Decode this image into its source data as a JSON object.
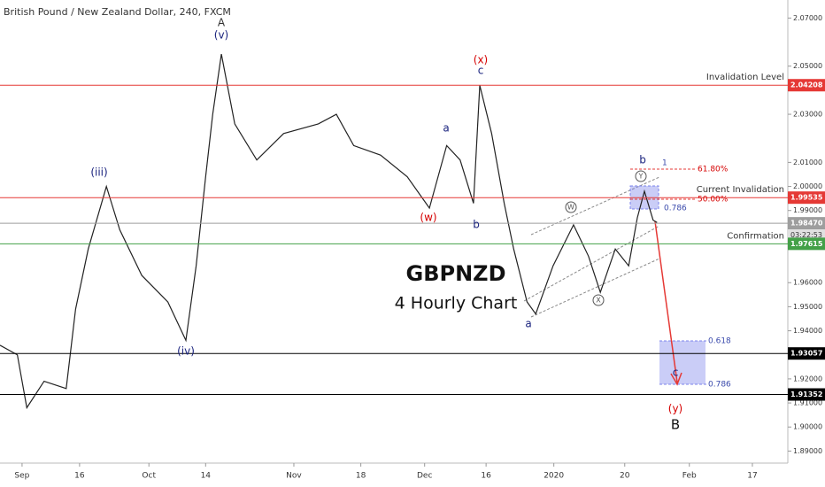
{
  "chart_data": {
    "type": "line",
    "title": "British Pound / New Zealand Dollar, 240, FXCM",
    "heading": "GBPNZD",
    "subheading": "4 Hourly Chart",
    "xlim": [
      0,
      100
    ],
    "xticks": [
      {
        "value": 2.8,
        "label": "Sep"
      },
      {
        "value": 10.1,
        "label": "16"
      },
      {
        "value": 18.9,
        "label": "Oct"
      },
      {
        "value": 26.1,
        "label": "14"
      },
      {
        "value": 37.3,
        "label": "Nov"
      },
      {
        "value": 45.8,
        "label": "18"
      },
      {
        "value": 53.9,
        "label": "Dec"
      },
      {
        "value": 61.7,
        "label": "16"
      },
      {
        "value": 70.3,
        "label": "2020"
      },
      {
        "value": 79.3,
        "label": "20"
      },
      {
        "value": 87.5,
        "label": "Feb"
      },
      {
        "value": 95.5,
        "label": "17"
      }
    ],
    "ylim": [
      1.885,
      2.0775
    ],
    "yticks": [
      {
        "value": 2.07,
        "label": "2.07000"
      },
      {
        "value": 2.05,
        "label": "2.05000"
      },
      {
        "value": 2.03,
        "label": "2.03000"
      },
      {
        "value": 2.01,
        "label": "2.01000"
      },
      {
        "value": 2.0,
        "label": "2.00000"
      },
      {
        "value": 1.99,
        "label": "1.99000"
      },
      {
        "value": 1.96,
        "label": "1.96000"
      },
      {
        "value": 1.95,
        "label": "1.95000"
      },
      {
        "value": 1.94,
        "label": "1.94000"
      },
      {
        "value": 1.92,
        "label": "1.92000"
      },
      {
        "value": 1.91,
        "label": "1.91000"
      },
      {
        "value": 1.9,
        "label": "1.90000"
      },
      {
        "value": 1.89,
        "label": "1.89000"
      }
    ],
    "series": [
      {
        "color": "#222222",
        "x": [
          0,
          2.2,
          3.4,
          5.6,
          8.4,
          9.6,
          11.2,
          13.5,
          15.2,
          18,
          21.3,
          23.6,
          24.9,
          26.1,
          27,
          28.1,
          29.8,
          32.6,
          36,
          40.4,
          42.7,
          44.9,
          48.3,
          51.7,
          54.5,
          56.7,
          58.4,
          60.1,
          60.9,
          62.4,
          64,
          65.2,
          66.9,
          68,
          70.2,
          72.8,
          74.7,
          76.2,
          78.1,
          79.8,
          80.9,
          81.8,
          82.9,
          83.4
        ],
        "values": [
          1.934,
          1.93,
          1.908,
          1.919,
          1.916,
          1.949,
          1.974,
          2.0,
          1.982,
          1.963,
          1.952,
          1.936,
          1.967,
          2.004,
          2.03,
          2.055,
          2.026,
          2.011,
          2.022,
          2.026,
          2.03,
          2.017,
          2.013,
          2.004,
          1.991,
          2.017,
          2.011,
          1.993,
          2.042,
          2.022,
          1.993,
          1.974,
          1.952,
          1.947,
          1.967,
          1.984,
          1.971,
          1.956,
          1.974,
          1.967,
          1.987,
          1.998,
          1.986,
          1.985
        ]
      }
    ],
    "levels": [
      {
        "value": 2.04208,
        "color": "#e53935",
        "name": "Invalidation Level"
      },
      {
        "value": 1.99535,
        "color": "#e53935",
        "name": "Current Invalidation"
      },
      {
        "value": 1.9847,
        "label": "1.98470",
        "color": "#9e9e9e",
        "countdown": "03:22:53"
      },
      {
        "value": 1.97615,
        "color": "#43a047",
        "name": "Confirmation"
      },
      {
        "value": 1.93057,
        "color": "#000000"
      },
      {
        "value": 1.91352,
        "color": "#000000"
      }
    ],
    "waves": [
      "A",
      "(v)",
      "(iii)",
      "(iv)",
      "(x)",
      "c",
      "a",
      "(w)",
      "b",
      "a",
      "W",
      "X",
      "Y",
      "b",
      "c",
      "(y)",
      "B"
    ],
    "fib_labels": [
      "61.80%",
      "50.00%",
      "0.786",
      "1",
      "0.618",
      "0.786"
    ]
  }
}
